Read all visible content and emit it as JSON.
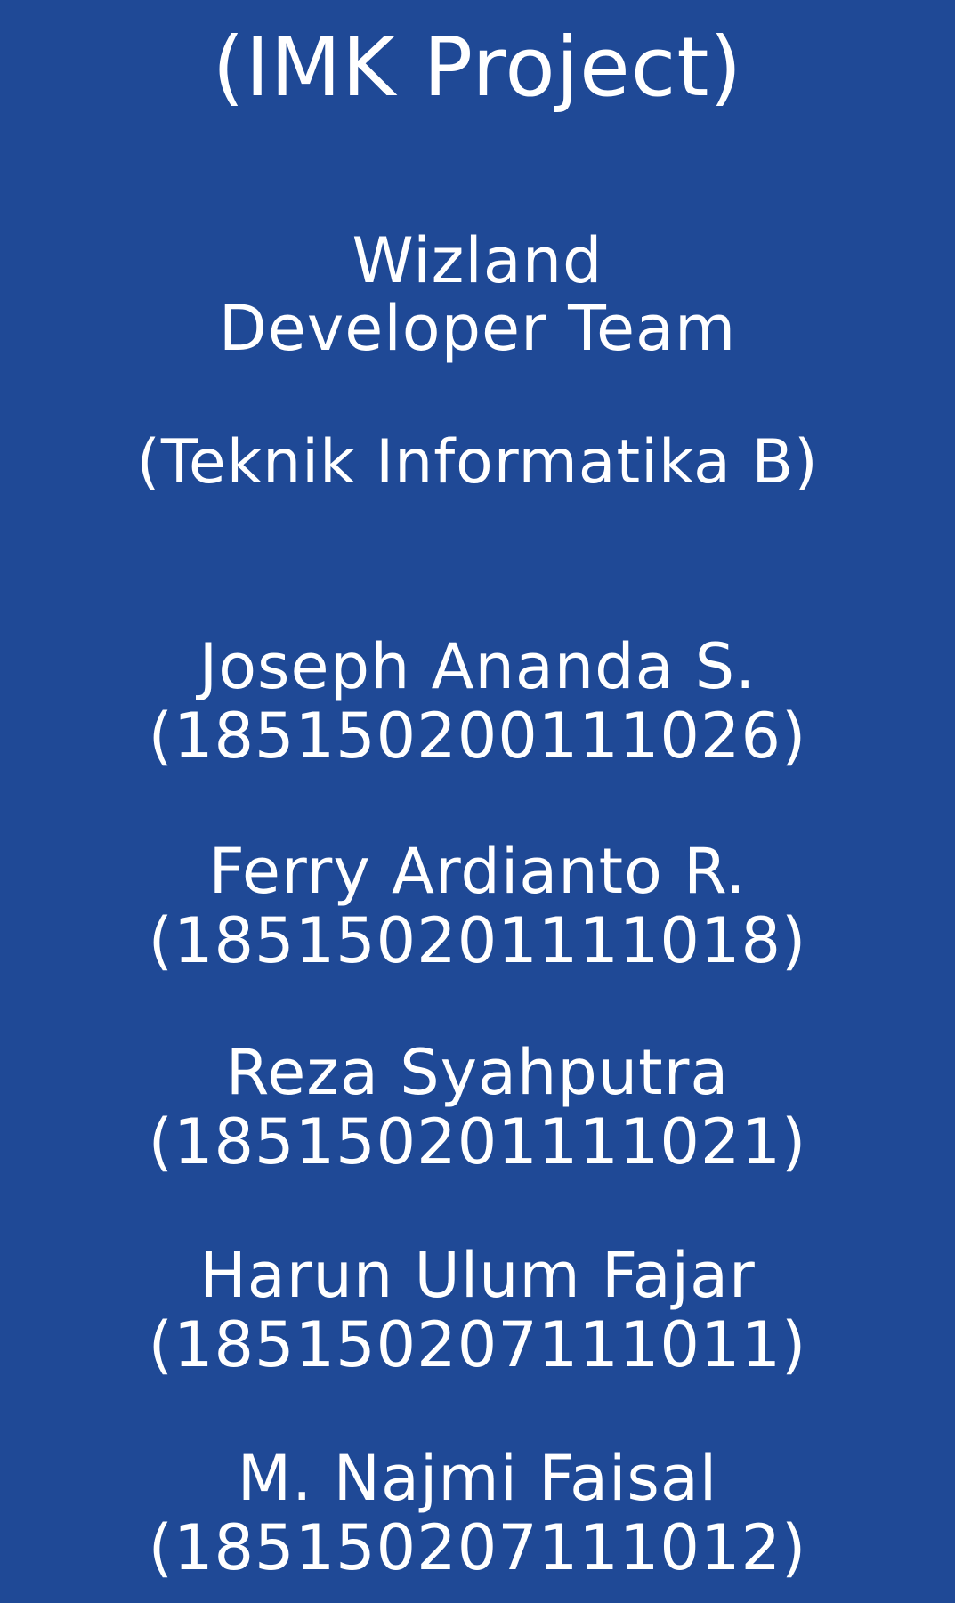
{
  "project_title": "(IMK Project)",
  "team": {
    "name": "Wizland",
    "subtitle": "Developer Team",
    "class_name": "(Teknik Informatika B)"
  },
  "members": [
    {
      "name": "Joseph Ananda S.",
      "id": "(185150200111026)"
    },
    {
      "name": "Ferry Ardianto R.",
      "id": "(185150201111018)"
    },
    {
      "name": "Reza Syahputra",
      "id": "(185150201111021)"
    },
    {
      "name": "Harun Ulum Fajar",
      "id": "(185150207111011)"
    },
    {
      "name": "M. Najmi Faisal",
      "id": "(185150207111012)"
    }
  ],
  "colors": {
    "background": "#1f4996",
    "text": "#ffffff"
  }
}
